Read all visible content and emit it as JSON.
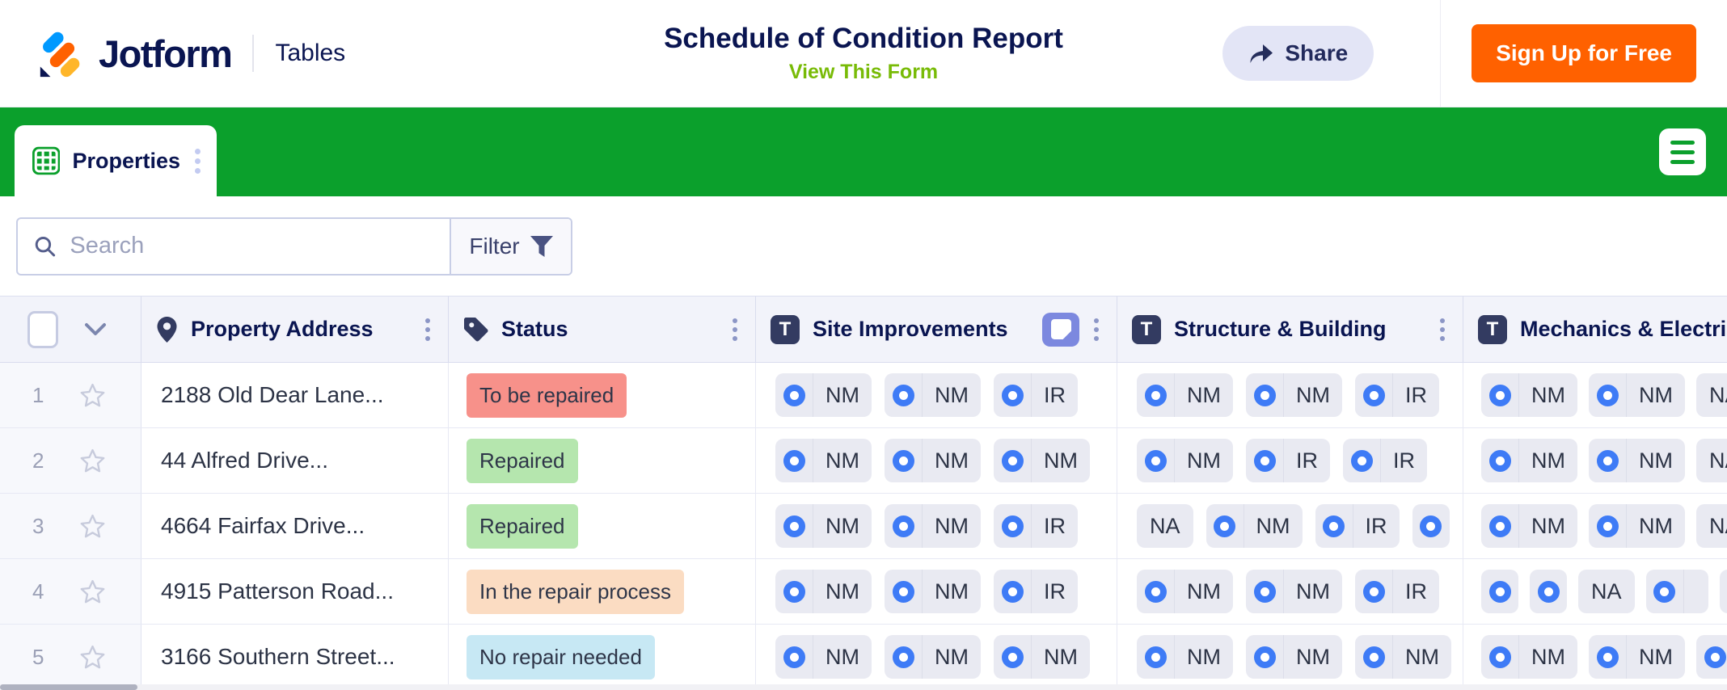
{
  "header": {
    "brand": "Jotform",
    "product": "Tables",
    "title": "Schedule of Condition Report",
    "view_form_link": "View This Form",
    "share_label": "Share",
    "signup_label": "Sign Up for Free"
  },
  "tab_bar": {
    "tab_label": "Properties"
  },
  "toolbar": {
    "search_placeholder": "Search",
    "filter_label": "Filter"
  },
  "colors": {
    "green_bar": "#0BA02C",
    "signup_orange": "#FF6100",
    "link_green": "#78BB07",
    "radio_blue": "#3E7BF6",
    "navy": "#0A1551"
  },
  "table": {
    "columns": [
      {
        "label": "Property Address",
        "icon": "location-pin"
      },
      {
        "label": "Status",
        "icon": "tag"
      },
      {
        "label": "Site Improvements",
        "icon": "text-field",
        "extra_icon": "form-note"
      },
      {
        "label": "Structure & Building",
        "icon": "text-field"
      },
      {
        "label": "Mechanics & Electric",
        "icon": "text-field"
      }
    ],
    "status_colors": {
      "To be repaired": "#F7918A",
      "Repaired": "#B5E6AE",
      "In the repair process": "#FBDCC2",
      "No repair needed": "#C7E8F4"
    },
    "rows": [
      {
        "num": "1",
        "address": "2188 Old Dear Lane...",
        "status": "To be repaired",
        "site_improvements": [
          {
            "text": "NM",
            "radio": true
          },
          {
            "text": "NM",
            "radio": true
          },
          {
            "text": "IR",
            "radio": true
          }
        ],
        "structure_building": [
          {
            "text": "NM",
            "radio": true
          },
          {
            "text": "NM",
            "radio": true
          },
          {
            "text": "IR",
            "radio": true
          }
        ],
        "mechanics_electric": [
          {
            "text": "NM",
            "radio": true
          },
          {
            "text": "NM",
            "radio": true
          },
          {
            "text": "NA",
            "radio": false
          }
        ]
      },
      {
        "num": "2",
        "address": "44 Alfred Drive...",
        "status": "Repaired",
        "site_improvements": [
          {
            "text": "NM",
            "radio": true
          },
          {
            "text": "NM",
            "radio": true
          },
          {
            "text": "NM",
            "radio": true
          }
        ],
        "structure_building": [
          {
            "text": "NM",
            "radio": true
          },
          {
            "text": "IR",
            "radio": true
          },
          {
            "text": "IR",
            "radio": true
          }
        ],
        "mechanics_electric": [
          {
            "text": "NM",
            "radio": true
          },
          {
            "text": "NM",
            "radio": true
          },
          {
            "text": "NA",
            "radio": false
          }
        ]
      },
      {
        "num": "3",
        "address": "4664 Fairfax Drive...",
        "status": "Repaired",
        "site_improvements": [
          {
            "text": "NM",
            "radio": true
          },
          {
            "text": "NM",
            "radio": true
          },
          {
            "text": "IR",
            "radio": true
          }
        ],
        "structure_building": [
          {
            "text": "NA",
            "radio": false
          },
          {
            "text": "NM",
            "radio": true
          },
          {
            "text": "IR",
            "radio": true
          },
          {
            "text": "",
            "radio": true
          }
        ],
        "mechanics_electric": [
          {
            "text": "NM",
            "radio": true
          },
          {
            "text": "NM",
            "radio": true
          },
          {
            "text": "NA",
            "radio": false
          }
        ]
      },
      {
        "num": "4",
        "address": "4915 Patterson Road...",
        "status": "In the repair process",
        "site_improvements": [
          {
            "text": "NM",
            "radio": true
          },
          {
            "text": "NM",
            "radio": true
          },
          {
            "text": "IR",
            "radio": true
          }
        ],
        "structure_building": [
          {
            "text": "NM",
            "radio": true
          },
          {
            "text": "NM",
            "radio": true
          },
          {
            "text": "IR",
            "radio": true
          }
        ],
        "mechanics_electric": [
          {
            "text": "",
            "radio": true
          },
          {
            "text": "",
            "radio": true
          },
          {
            "text": "NA",
            "radio": false
          },
          {
            "text": "",
            "radio": true,
            "split": true
          },
          {
            "text": "",
            "radio": true
          }
        ]
      },
      {
        "num": "5",
        "address": "3166 Southern Street...",
        "status": "No repair needed",
        "site_improvements": [
          {
            "text": "NM",
            "radio": true
          },
          {
            "text": "NM",
            "radio": true
          },
          {
            "text": "NM",
            "radio": true
          }
        ],
        "structure_building": [
          {
            "text": "NM",
            "radio": true
          },
          {
            "text": "NM",
            "radio": true
          },
          {
            "text": "NM",
            "radio": true
          }
        ],
        "mechanics_electric": [
          {
            "text": "NM",
            "radio": true
          },
          {
            "text": "NM",
            "radio": true
          },
          {
            "text": "",
            "radio": true
          }
        ]
      }
    ]
  }
}
